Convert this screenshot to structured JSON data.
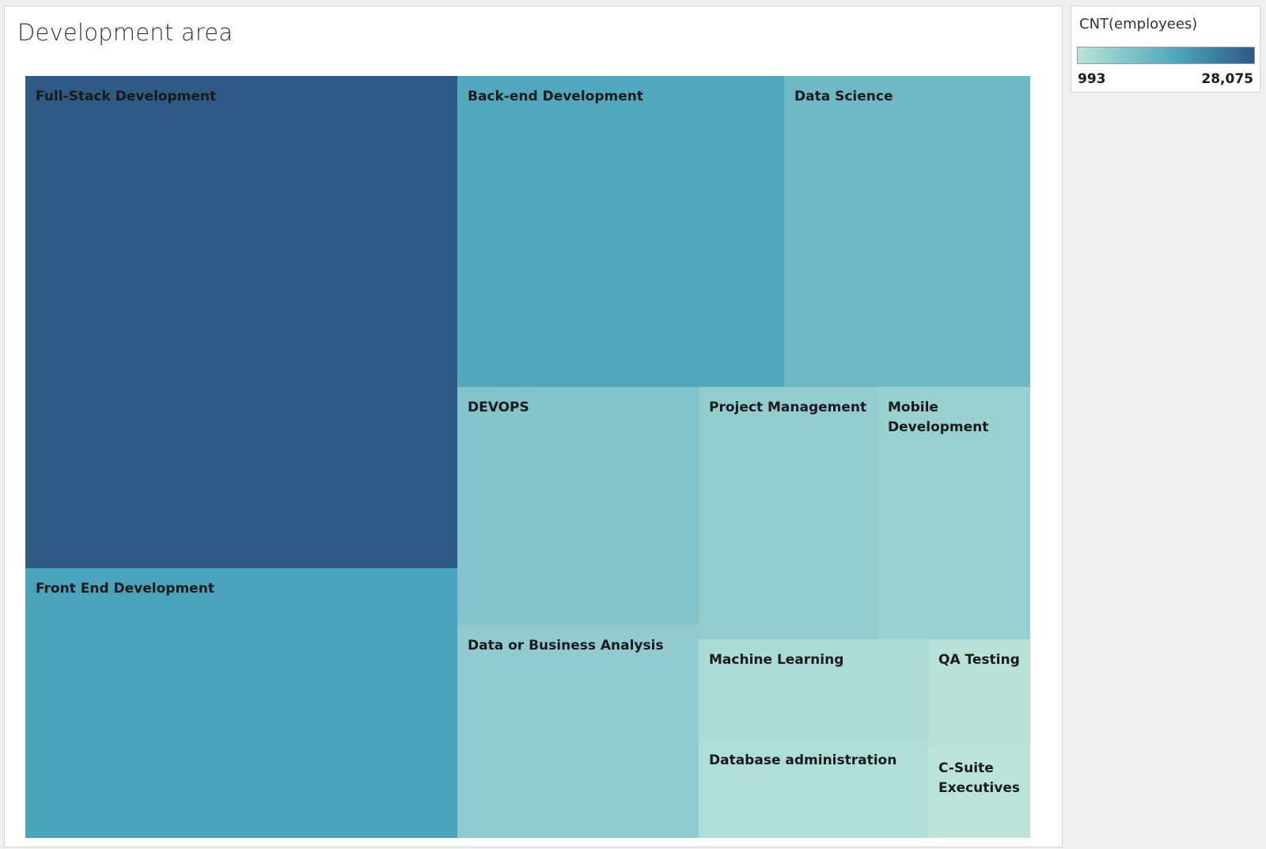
{
  "title": "Development area",
  "legend": {
    "title": "CNT(employees)",
    "min_label": "993",
    "max_label": "28,075",
    "color_low": "#b9e3d9",
    "color_mid": "#4fa8bc",
    "color_high": "#2c5985"
  },
  "chart_data": {
    "type": "treemap",
    "title": "Development area",
    "measure": "CNT(employees)",
    "color_range": [
      993,
      28075
    ],
    "items": [
      {
        "label": "Full-Stack Development",
        "value": 28075,
        "color": "#2e5a85"
      },
      {
        "label": "Front End Development",
        "value": 14500,
        "color": "#49a3bb"
      },
      {
        "label": "Back-end Development",
        "value": 13400,
        "color": "#51a8bd"
      },
      {
        "label": "Data Science",
        "value": 10100,
        "color": "#6eb8c6"
      },
      {
        "label": "DEVOPS",
        "value": 7600,
        "color": "#83c3ca"
      },
      {
        "label": "Project Management",
        "value": 5900,
        "color": "#92ccce"
      },
      {
        "label": "Mobile Development",
        "value": 5100,
        "color": "#98d0cf"
      },
      {
        "label": "Data or Business Analysis",
        "value": 6500,
        "color": "#92cbcf"
      },
      {
        "label": "Machine Learning",
        "value": 3100,
        "color": "#aadbd5"
      },
      {
        "label": "Database administration",
        "value": 2700,
        "color": "#afddd7"
      },
      {
        "label": "QA Testing",
        "value": 1300,
        "color": "#b8e2d9"
      },
      {
        "label": "C-Suite Executives",
        "value": 993,
        "color": "#bae3da"
      }
    ]
  }
}
